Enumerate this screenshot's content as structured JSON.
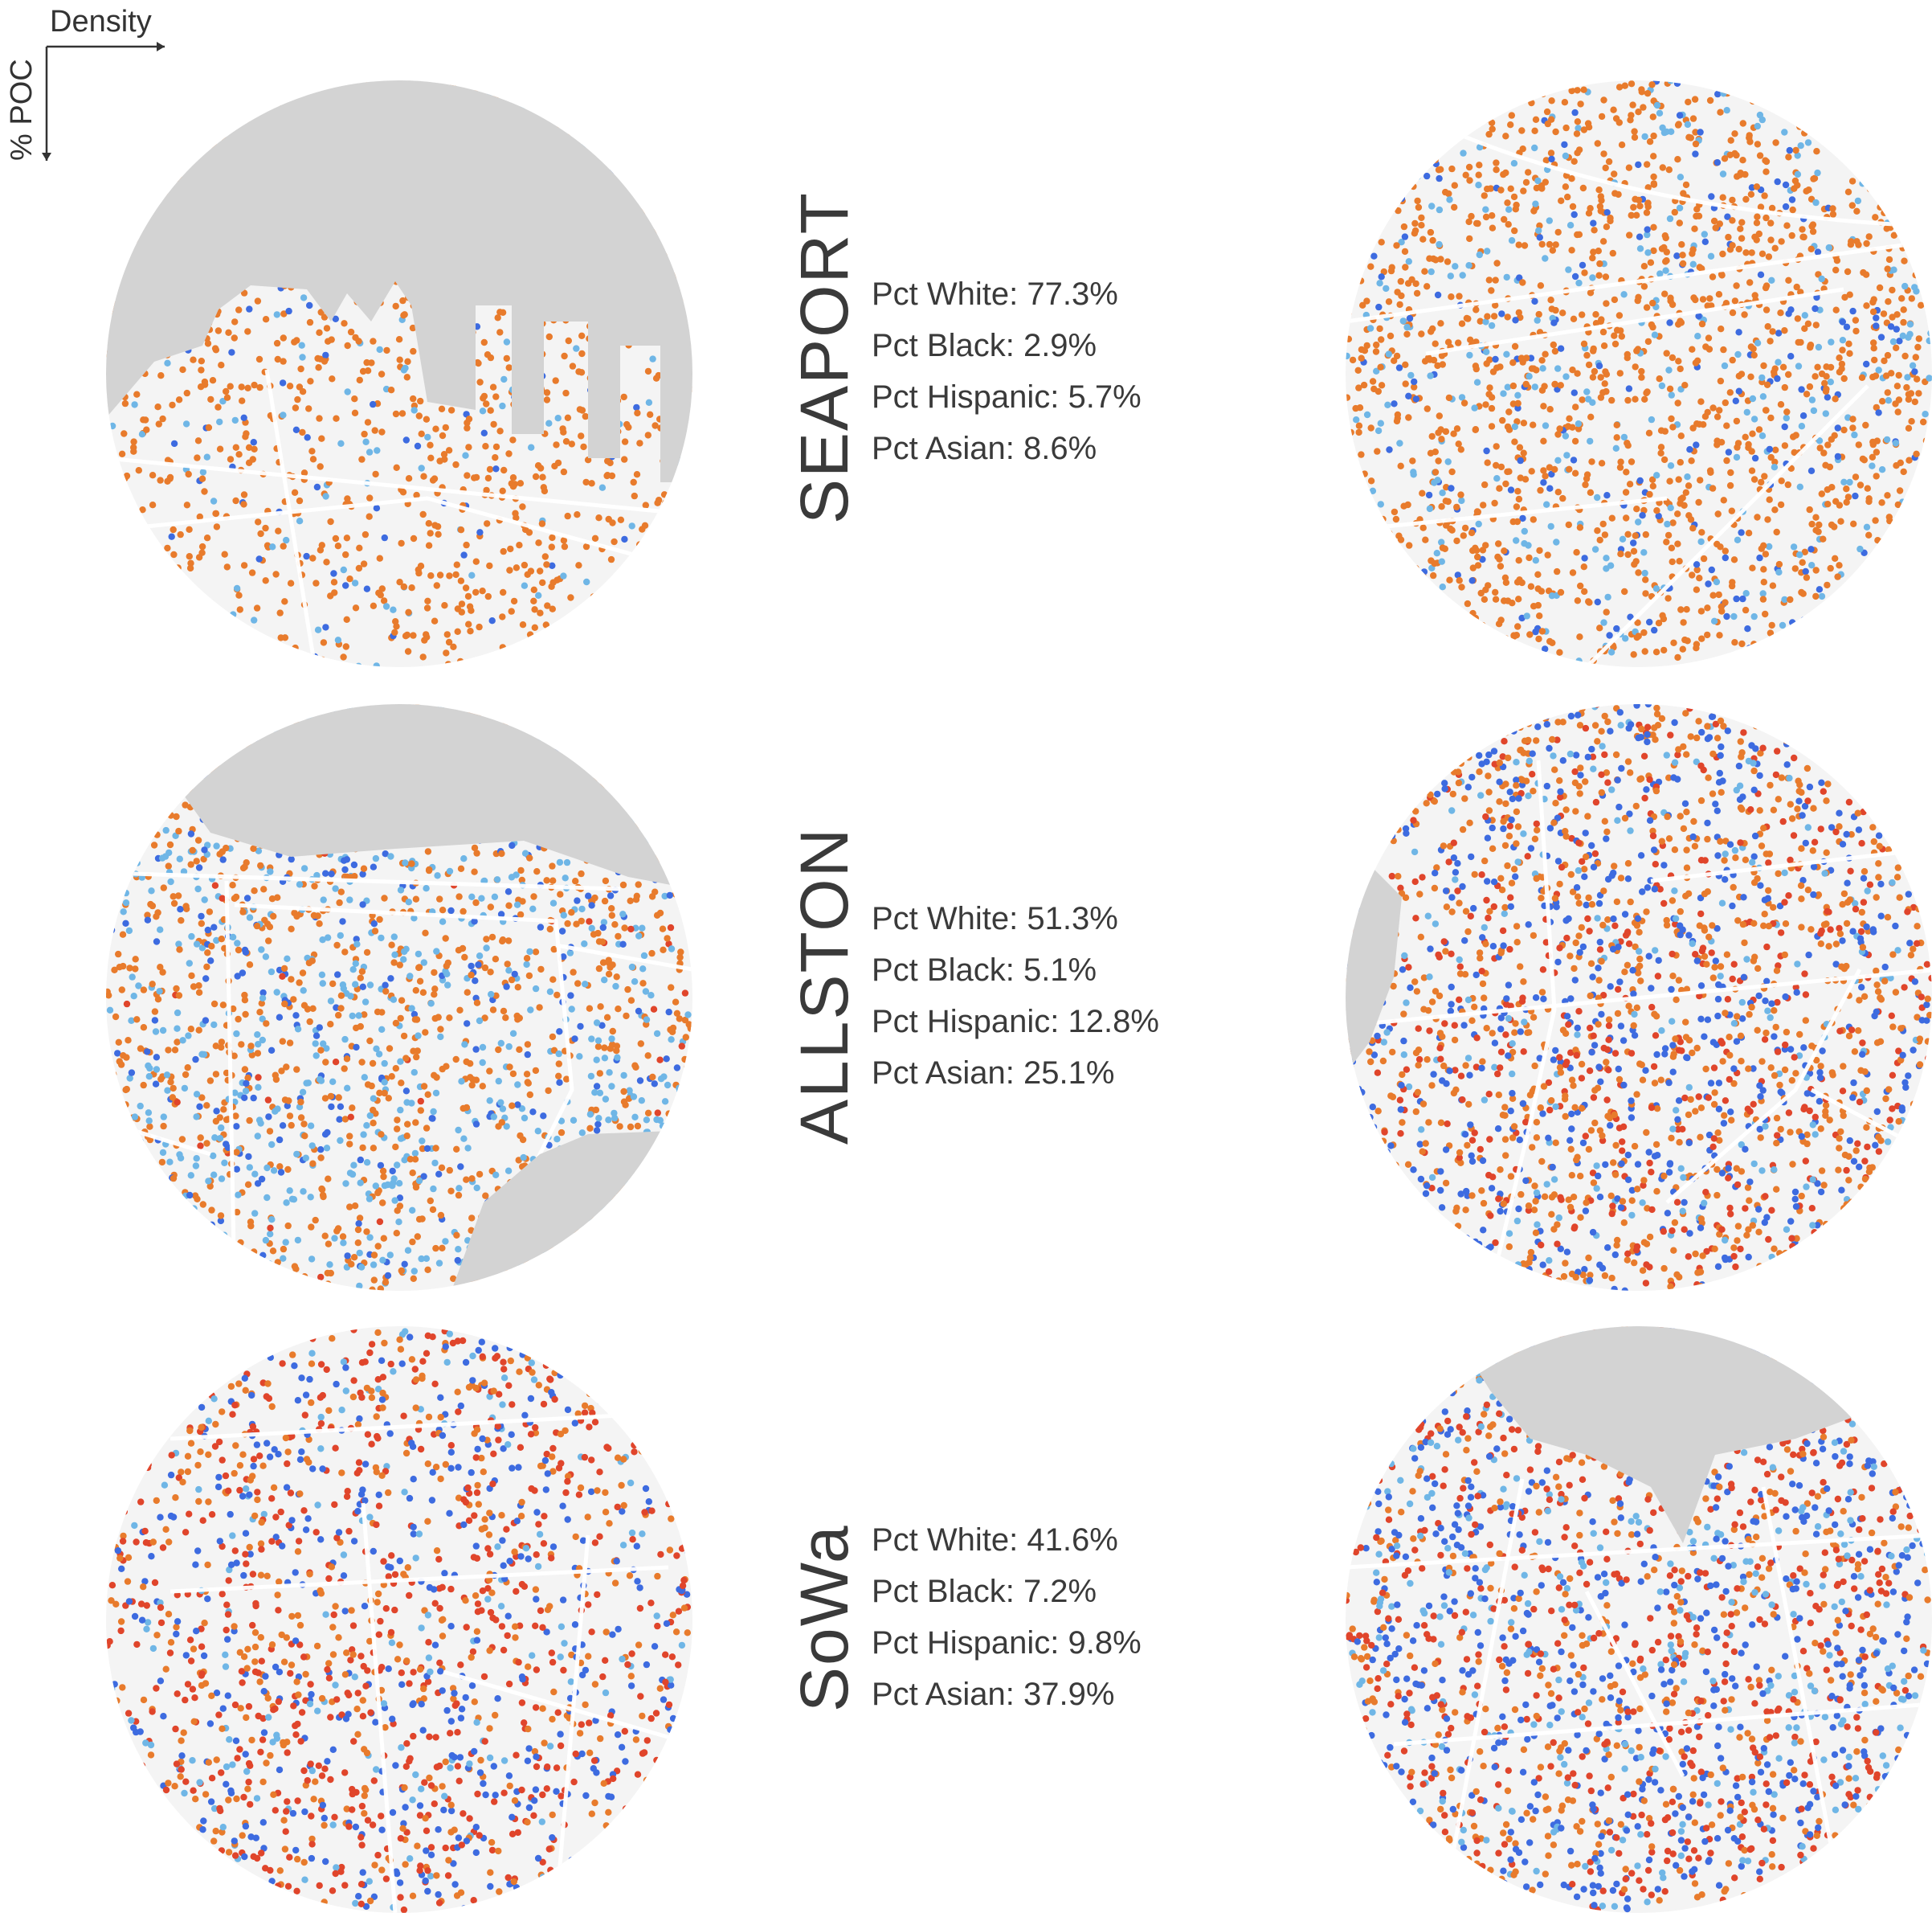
{
  "axis": {
    "x_label": "Density",
    "y_label": "% POC"
  },
  "colors": {
    "white": "#e87b2c",
    "black": "#3d6be0",
    "hispanic": "#e0452b",
    "asian": "#6fb6e6",
    "water": "#d3d3d3",
    "land": "#f4f4f4",
    "street": "#ffffff"
  },
  "neighborhoods": [
    {
      "name": "SEAPORT",
      "stats": [
        "Pct White: 77.3%",
        "Pct Black: 2.9%",
        "Pct Hispanic: 5.7%",
        "Pct Asian: 8.6%"
      ],
      "maps": [
        {
          "mix": {
            "white": 0.82,
            "black": 0.07,
            "asian": 0.11
          }
        },
        {
          "mix": {
            "white": 0.72,
            "black": 0.12,
            "asian": 0.16
          }
        }
      ]
    },
    {
      "name": "ALLSTON",
      "stats": [
        "Pct White: 51.3%",
        "Pct Black: 5.1%",
        "Pct Hispanic: 12.8%",
        "Pct Asian: 25.1%"
      ],
      "maps": [
        {
          "mix": {
            "white": 0.5,
            "black": 0.14,
            "hispanic": 0.02,
            "asian": 0.34
          }
        },
        {
          "mix": {
            "white": 0.45,
            "black": 0.27,
            "hispanic": 0.2,
            "asian": 0.08
          }
        }
      ]
    },
    {
      "name": "SoWa",
      "stats": [
        "Pct White: 41.6%",
        "Pct Black: 7.2%",
        "Pct Hispanic: 9.8%",
        "Pct Asian: 37.9%"
      ],
      "maps": [
        {
          "mix": {
            "white": 0.3,
            "black": 0.25,
            "hispanic": 0.35,
            "asian": 0.1
          }
        },
        {
          "mix": {
            "white": 0.25,
            "black": 0.3,
            "hispanic": 0.3,
            "asian": 0.15
          }
        }
      ]
    }
  ]
}
